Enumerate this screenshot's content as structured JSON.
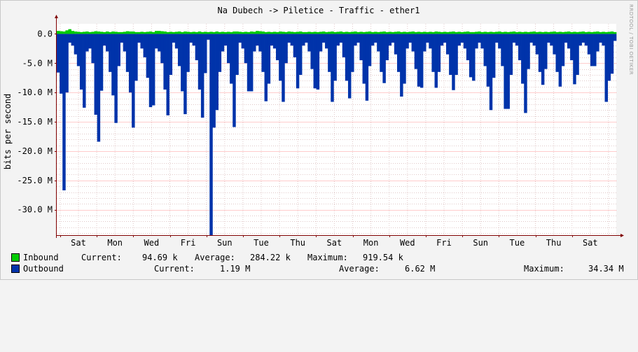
{
  "chart_data": {
    "type": "area",
    "title": "Na Dubech -> Piletice - Traffic - ether1",
    "ylabel": "bits per second",
    "watermark": "RRDTOOL / TOBI OETIKER",
    "ylim": [
      -34.34,
      1.0
    ],
    "y_unit": "M",
    "y_ticks": [
      0.0,
      -5.0,
      -10.0,
      -15.0,
      -20.0,
      -25.0,
      -30.0
    ],
    "y_tick_labels": [
      "0.0",
      "-5.0 M",
      "-10.0 M",
      "-15.0 M",
      "-20.0 M",
      "-25.0 M",
      "-30.0 M"
    ],
    "x_tick_labels": [
      "Sat",
      "Mon",
      "Wed",
      "Fri",
      "Sun",
      "Tue",
      "Thu",
      "Sat",
      "Mon",
      "Wed",
      "Fri",
      "Sun",
      "Tue",
      "Thu",
      "Sat"
    ],
    "grid": true,
    "colors": {
      "inbound": "#00cc00",
      "outbound": "#0033aa",
      "grid_minor": "#e0c8c8",
      "grid_major": "#ff9999",
      "axis": "#800000"
    },
    "series": [
      {
        "name": "Inbound",
        "values": [
          0.5,
          0.45,
          0.4,
          0.6,
          0.8,
          0.5,
          0.4,
          0.35,
          0.3,
          0.35,
          0.4,
          0.3,
          0.35,
          0.45,
          0.4,
          0.35,
          0.3,
          0.4,
          0.3,
          0.4,
          0.35,
          0.3,
          0.3,
          0.35,
          0.45,
          0.4,
          0.4,
          0.3,
          0.3,
          0.35,
          0.3,
          0.35,
          0.4,
          0.3,
          0.5,
          0.5,
          0.45,
          0.4,
          0.3,
          0.35,
          0.3,
          0.35,
          0.4,
          0.3,
          0.4,
          0.35,
          0.3,
          0.35,
          0.3,
          0.4,
          0.3,
          0.35,
          0.3,
          0.35,
          0.3,
          0.4,
          0.3,
          0.35,
          0.3,
          0.35,
          0.3,
          0.4,
          0.4,
          0.35,
          0.3,
          0.35,
          0.3,
          0.4,
          0.35,
          0.5,
          0.45,
          0.4,
          0.3,
          0.35,
          0.3,
          0.35,
          0.3,
          0.4,
          0.35,
          0.3,
          0.4,
          0.35,
          0.3,
          0.35,
          0.4,
          0.3,
          0.3,
          0.35,
          0.3,
          0.35,
          0.3,
          0.35,
          0.4,
          0.3,
          0.35,
          0.4,
          0.3,
          0.35,
          0.4,
          0.3,
          0.35,
          0.3,
          0.35,
          0.4,
          0.3,
          0.35,
          0.3,
          0.35,
          0.4,
          0.3,
          0.35,
          0.3,
          0.35,
          0.4,
          0.3,
          0.35,
          0.3,
          0.35,
          0.4,
          0.3,
          0.35,
          0.3,
          0.35,
          0.4,
          0.3,
          0.35,
          0.3,
          0.35,
          0.3,
          0.35,
          0.3,
          0.4,
          0.35,
          0.3,
          0.35,
          0.3,
          0.35,
          0.4,
          0.3,
          0.35,
          0.3,
          0.35,
          0.4,
          0.3,
          0.3,
          0.35,
          0.4,
          0.3,
          0.35,
          0.3,
          0.35,
          0.3,
          0.35,
          0.4,
          0.3,
          0.35,
          0.3,
          0.35,
          0.4,
          0.3,
          0.35,
          0.3,
          0.35,
          0.3,
          0.35,
          0.4,
          0.3,
          0.35,
          0.3,
          0.35,
          0.3,
          0.35,
          0.4,
          0.3,
          0.35,
          0.3,
          0.35,
          0.4,
          0.3,
          0.35,
          0.3,
          0.35,
          0.4,
          0.3,
          0.35,
          0.3,
          0.35,
          0.4,
          0.3,
          0.35,
          0.3,
          0.35,
          0.4,
          0.3,
          0.35,
          0.3,
          0.35,
          0.3
        ]
      },
      {
        "name": "Outbound",
        "values": [
          -6.6,
          -10.2,
          -26.7,
          -10.0,
          -1.5,
          -2.0,
          -3.5,
          -5.5,
          -9.5,
          -12.6,
          -3.0,
          -2.5,
          -5.0,
          -13.8,
          -18.4,
          -9.7,
          -2.0,
          -3.0,
          -6.5,
          -10.5,
          -15.2,
          -5.5,
          -1.5,
          -3.0,
          -6.5,
          -10.0,
          -16.0,
          -8.0,
          -1.5,
          -2.5,
          -4.0,
          -7.5,
          -12.5,
          -12.2,
          -2.5,
          -3.0,
          -5.0,
          -9.5,
          -13.9,
          -7.0,
          -1.5,
          -2.5,
          -5.5,
          -9.8,
          -13.7,
          -6.5,
          -1.5,
          -2.0,
          -4.5,
          -9.5,
          -14.3,
          -6.7,
          -1.0,
          -34.34,
          -16.0,
          -13.0,
          -6.5,
          -3.0,
          -2.0,
          -5.0,
          -8.5,
          -15.9,
          -7.0,
          -1.5,
          -2.5,
          -5.0,
          -9.8,
          -9.8,
          -3.0,
          -2.0,
          -3.0,
          -6.5,
          -11.5,
          -8.5,
          -2.0,
          -2.5,
          -4.5,
          -8.0,
          -11.6,
          -5.0,
          -1.5,
          -2.0,
          -4.0,
          -9.3,
          -7.0,
          -2.0,
          -1.5,
          -3.0,
          -6.0,
          -9.3,
          -9.5,
          -3.0,
          -1.5,
          -2.5,
          -6.5,
          -11.6,
          -8.0,
          -2.0,
          -1.5,
          -4.0,
          -8.0,
          -11.0,
          -6.5,
          -2.0,
          -1.5,
          -4.5,
          -8.5,
          -11.4,
          -5.5,
          -2.0,
          -1.5,
          -3.0,
          -6.5,
          -8.4,
          -4.5,
          -2.0,
          -1.5,
          -3.5,
          -6.5,
          -10.7,
          -8.5,
          -2.5,
          -1.5,
          -3.0,
          -6.0,
          -9.0,
          -9.2,
          -3.0,
          -1.5,
          -2.5,
          -6.5,
          -9.2,
          -6.5,
          -2.0,
          -1.5,
          -3.5,
          -7.0,
          -9.6,
          -7.0,
          -2.0,
          -1.5,
          -2.5,
          -4.5,
          -7.4,
          -8.0,
          -2.5,
          -1.5,
          -2.5,
          -5.5,
          -9.0,
          -13.0,
          -7.5,
          -1.5,
          -2.5,
          -5.5,
          -12.8,
          -12.8,
          -7.0,
          -1.5,
          -2.0,
          -4.5,
          -8.5,
          -13.5,
          -6.0,
          -1.5,
          -2.0,
          -3.5,
          -6.5,
          -8.7,
          -6.0,
          -1.5,
          -2.0,
          -3.5,
          -6.5,
          -9.0,
          -5.5,
          -1.5,
          -2.5,
          -4.5,
          -8.6,
          -7.0,
          -2.0,
          -1.5,
          -2.0,
          -3.5,
          -5.5,
          -5.5,
          -3.0,
          -1.5,
          -2.0,
          -11.6,
          -8.0,
          -6.8,
          -1.2
        ]
      }
    ]
  },
  "legend": {
    "inbound": {
      "label": "Inbound",
      "current_label": "Current:",
      "current": "94.69 k",
      "average_label": "Average:",
      "average": "284.22 k",
      "maximum_label": "Maximum:",
      "maximum": "919.54 k"
    },
    "outbound": {
      "label": "Outbound",
      "current_label": "Current:",
      "current": "1.19 M",
      "average_label": "Average:",
      "average": "6.62 M",
      "maximum_label": "Maximum:",
      "maximum": "34.34 M"
    }
  }
}
